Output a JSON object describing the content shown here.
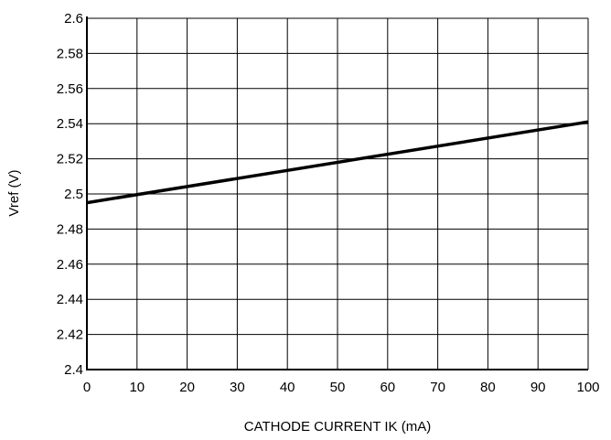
{
  "chart_data": {
    "type": "line",
    "title": "",
    "xlabel": "CATHODE CURRENT IK (mA)",
    "ylabel": "Vref (V)",
    "xlim": [
      0,
      100
    ],
    "ylim": [
      2.4,
      2.6
    ],
    "x_ticks": [
      0,
      10,
      20,
      30,
      40,
      50,
      60,
      70,
      80,
      90,
      100
    ],
    "x_tick_labels": [
      "0",
      "10",
      "20",
      "30",
      "40",
      "50",
      "60",
      "70",
      "80",
      "90",
      "100"
    ],
    "y_ticks": [
      2.4,
      2.42,
      2.44,
      2.46,
      2.48,
      2.5,
      2.52,
      2.54,
      2.56,
      2.58,
      2.6
    ],
    "y_tick_labels": [
      "2.4",
      "2.42",
      "2.44",
      "2.46",
      "2.48",
      "2.5",
      "2.52",
      "2.54",
      "2.56",
      "2.58",
      "2.6"
    ],
    "grid": true,
    "series": [
      {
        "x": [
          0,
          100
        ],
        "y": [
          2.495,
          2.541
        ]
      }
    ]
  },
  "colors": {
    "line": "#000000",
    "grid": "#000000",
    "background": "#ffffff"
  }
}
